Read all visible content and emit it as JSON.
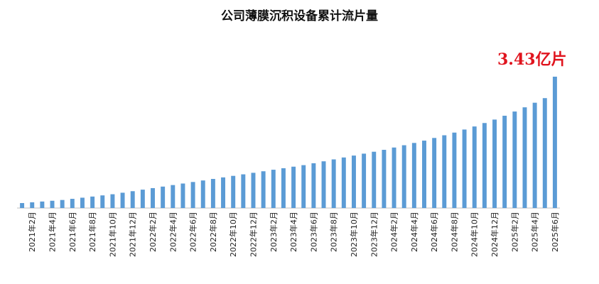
{
  "chart_data": {
    "type": "bar",
    "title": "公司薄膜沉积设备累计流片量",
    "annotation": "3.43亿片",
    "xlabel": "",
    "ylabel": "",
    "ylim": [
      0,
      3.43
    ],
    "y_axis_shown": false,
    "grid": false,
    "legend": "none",
    "bar_color": "#5b9bd5",
    "annotation_color": "#e0141e",
    "categories": [
      "2021年1月",
      "2021年2月",
      "2021年3月",
      "2021年4月",
      "2021年5月",
      "2021年6月",
      "2021年7月",
      "2021年8月",
      "2021年9月",
      "2021年10月",
      "2021年11月",
      "2021年12月",
      "2022年1月",
      "2022年2月",
      "2022年3月",
      "2022年4月",
      "2022年5月",
      "2022年6月",
      "2022年7月",
      "2022年8月",
      "2022年9月",
      "2022年10月",
      "2022年11月",
      "2022年12月",
      "2023年1月",
      "2023年2月",
      "2023年3月",
      "2023年4月",
      "2023年5月",
      "2023年6月",
      "2023年7月",
      "2023年8月",
      "2023年9月",
      "2023年10月",
      "2023年11月",
      "2023年12月",
      "2024年1月",
      "2024年2月",
      "2024年3月",
      "2024年4月",
      "2024年5月",
      "2024年6月",
      "2024年7月",
      "2024年8月",
      "2024年9月",
      "2024年10月",
      "2024年11月",
      "2024年12月",
      "2025年1月",
      "2025年2月",
      "2025年3月",
      "2025年4月",
      "2025年5月",
      "2025年6月"
    ],
    "tick_labels": [
      "2021年2月",
      "2021年4月",
      "2021年6月",
      "2021年8月",
      "2021年10月",
      "2021年12月",
      "2022年2月",
      "2022年4月",
      "2022年6月",
      "2022年8月",
      "2022年10月",
      "2022年12月",
      "2023年2月",
      "2023年4月",
      "2023年6月",
      "2023年8月",
      "2023年10月",
      "2023年12月",
      "2024年2月",
      "2024年4月",
      "2024年6月",
      "2024年8月",
      "2024年10月",
      "2024年12月",
      "2025年2月",
      "2025年4月",
      "2025年6月"
    ],
    "values": [
      0.13,
      0.15,
      0.17,
      0.19,
      0.21,
      0.24,
      0.27,
      0.3,
      0.33,
      0.36,
      0.4,
      0.44,
      0.48,
      0.52,
      0.56,
      0.6,
      0.64,
      0.68,
      0.72,
      0.76,
      0.8,
      0.84,
      0.88,
      0.92,
      0.96,
      1.0,
      1.04,
      1.08,
      1.12,
      1.17,
      1.22,
      1.27,
      1.32,
      1.37,
      1.42,
      1.47,
      1.52,
      1.58,
      1.64,
      1.7,
      1.76,
      1.83,
      1.9,
      1.97,
      2.05,
      2.13,
      2.22,
      2.31,
      2.41,
      2.52,
      2.63,
      2.75,
      2.87,
      3.43
    ]
  }
}
